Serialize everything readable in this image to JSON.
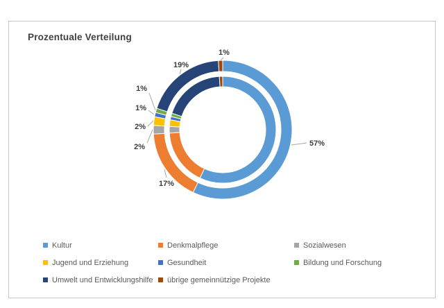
{
  "title": "Prozentuale Verteilung",
  "chart_data": {
    "type": "doughnut",
    "title": "Prozentuale Verteilung",
    "rings": 2,
    "start_angle_deg": 0,
    "direction": "clockwise",
    "unit": "%",
    "categories": [
      "Kultur",
      "Denkmalpflege",
      "Sozialwesen",
      "Jugend  und Erziehung",
      "Gesundheit",
      "Bildung und Forschung",
      "Umwelt und Entwicklungshilfe",
      "übrige gemeinnützige Projekte"
    ],
    "values": [
      57,
      17,
      2,
      2,
      1,
      1,
      19,
      1
    ],
    "data_labels": [
      "57%",
      "17%",
      "2%",
      "2%",
      "1%",
      "1%",
      "19%",
      "1%"
    ],
    "colors": [
      "#5B9BD5",
      "#ED7D31",
      "#A5A5A5",
      "#FFC000",
      "#4472C4",
      "#70AD47",
      "#264478",
      "#9E480E"
    ],
    "legend_position": "bottom",
    "legend_columns": 3
  }
}
